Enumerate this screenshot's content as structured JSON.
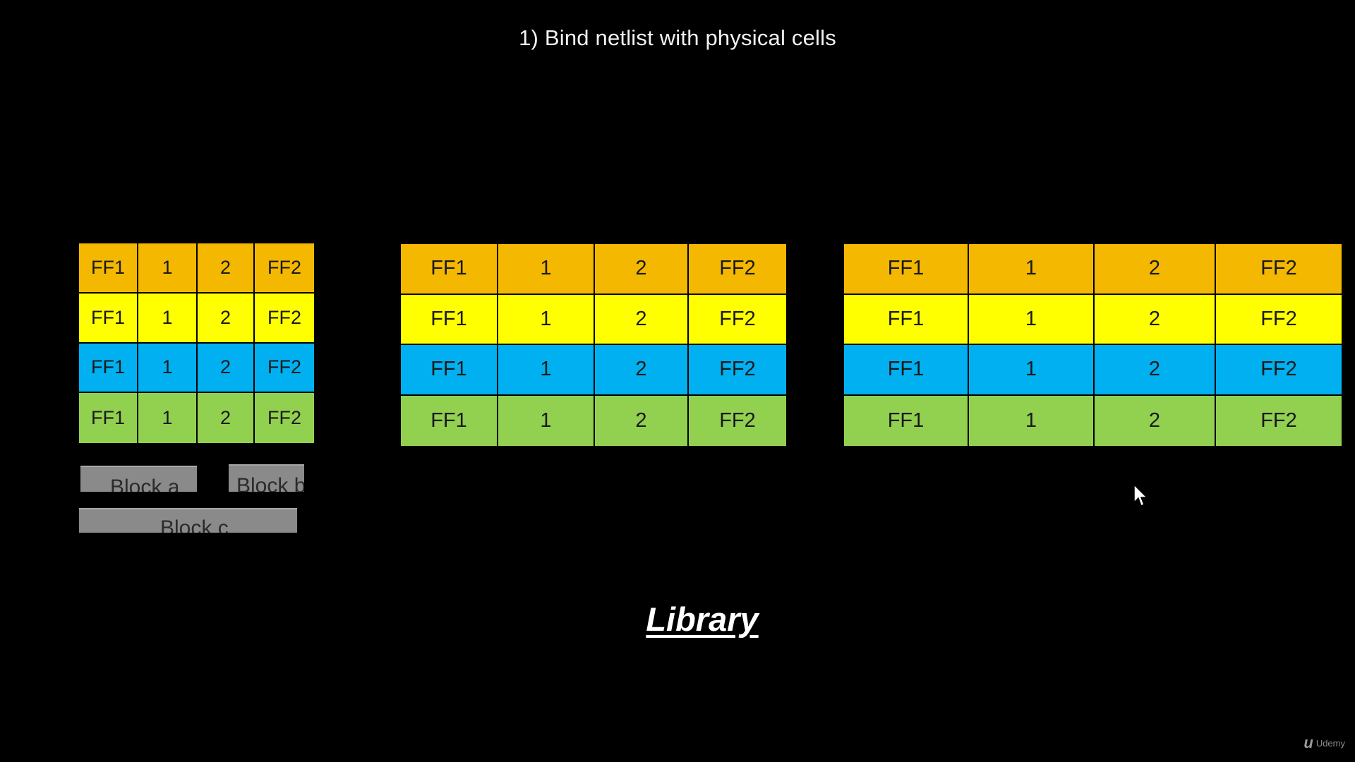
{
  "title": "1) Bind netlist with physical cells",
  "colors": {
    "orange": "#f5b800",
    "yellow": "#ffff00",
    "blue": "#00b0f0",
    "green": "#92d050",
    "block": "#8a8a8a"
  },
  "row_colors": [
    "orange",
    "yellow",
    "blue",
    "green"
  ],
  "cell_labels": [
    "FF1",
    "1",
    "2",
    "FF2"
  ],
  "grids": [
    "grid-small",
    "grid-medium",
    "grid-large"
  ],
  "blocks": {
    "a": "Block a",
    "b": "Block b",
    "c": "Block c"
  },
  "library_label": "Library",
  "watermark": {
    "logo": "u",
    "text": "Udemy"
  }
}
